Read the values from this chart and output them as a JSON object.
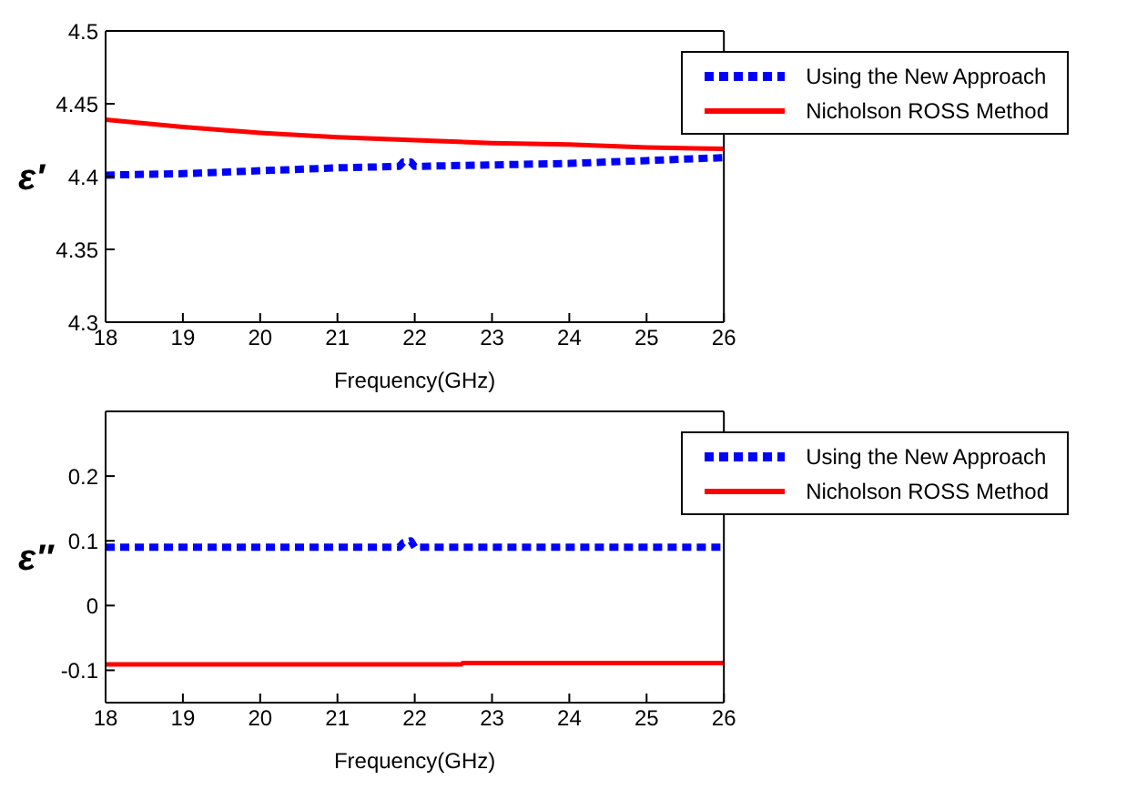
{
  "chart_data": [
    {
      "type": "line",
      "xlabel": "Frequency(GHz)",
      "ylabel": "ε′",
      "xlim": [
        18,
        26
      ],
      "xticks": [
        18,
        19,
        20,
        21,
        22,
        23,
        24,
        25,
        26
      ],
      "ylim": [
        4.3,
        4.5
      ],
      "yticks": [
        4.3,
        4.35,
        4.4,
        4.45,
        4.5
      ],
      "grid": false,
      "legend": "top right",
      "series": [
        {
          "name": "Using the New Approach",
          "color": "#0000ff",
          "line_style": "dotted",
          "x": [
            18,
            19,
            20,
            21,
            21.8,
            21.85,
            21.95,
            22,
            23,
            24,
            25,
            26
          ],
          "values": [
            4.401,
            4.402,
            4.404,
            4.406,
            4.407,
            4.41,
            4.41,
            4.407,
            4.408,
            4.409,
            4.411,
            4.413
          ]
        },
        {
          "name": "Nicholson ROSS Method",
          "color": "#ff0000",
          "line_style": "solid",
          "x": [
            18,
            19,
            20,
            21,
            22,
            23,
            24,
            25,
            26
          ],
          "values": [
            4.439,
            4.434,
            4.43,
            4.427,
            4.425,
            4.423,
            4.422,
            4.42,
            4.419
          ]
        }
      ]
    },
    {
      "type": "line",
      "xlabel": "Frequency(GHz)",
      "ylabel": "ε″",
      "xlim": [
        18,
        26
      ],
      "xticks": [
        18,
        19,
        20,
        21,
        22,
        23,
        24,
        25,
        26
      ],
      "ylim": [
        -0.15,
        0.3
      ],
      "yticks": [
        -0.1,
        0,
        0.1,
        0.2
      ],
      "grid": false,
      "legend": "top right",
      "series": [
        {
          "name": "Using the New Approach",
          "color": "#0000ff",
          "line_style": "dotted",
          "x": [
            18,
            21.8,
            21.85,
            21.95,
            22,
            26
          ],
          "values": [
            0.09,
            0.09,
            0.097,
            0.1,
            0.09,
            0.09
          ]
        },
        {
          "name": "Nicholson ROSS Method",
          "color": "#ff0000",
          "line_style": "solid",
          "x": [
            18,
            22.6,
            22.62,
            26
          ],
          "values": [
            -0.091,
            -0.091,
            -0.089,
            -0.089
          ]
        }
      ]
    }
  ]
}
